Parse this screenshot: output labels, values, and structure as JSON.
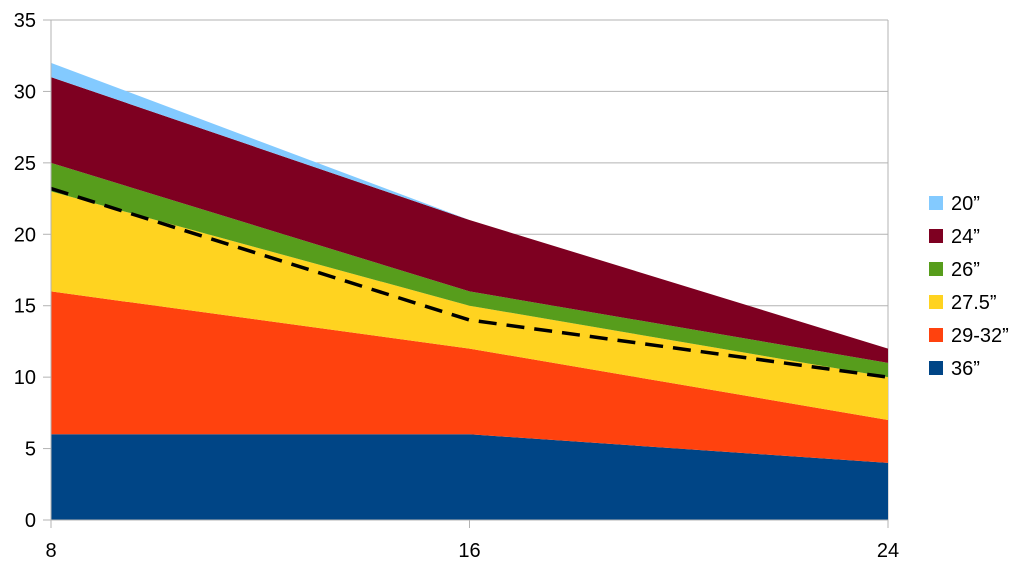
{
  "chart_data": {
    "type": "area",
    "stacked": true,
    "title": "",
    "xlabel": "",
    "ylabel": "",
    "x": [
      8,
      16,
      24
    ],
    "x_ticks": [
      "8",
      "16",
      "24"
    ],
    "ylim": [
      0,
      35
    ],
    "y_ticks": [
      "0",
      "5",
      "10",
      "15",
      "20",
      "25",
      "30",
      "35"
    ],
    "grid": true,
    "legend_position": "right",
    "series": [
      {
        "name": "36”",
        "color": "#004586",
        "values": [
          6,
          6,
          4
        ]
      },
      {
        "name": "29-32”",
        "color": "#ff420e",
        "values": [
          10,
          6,
          3
        ]
      },
      {
        "name": "27.5”",
        "color": "#ffd320",
        "values": [
          7,
          3,
          3
        ]
      },
      {
        "name": "26”",
        "color": "#579d1c",
        "values": [
          2,
          1,
          1
        ]
      },
      {
        "name": "24”",
        "color": "#7e0021",
        "values": [
          6,
          5,
          1
        ]
      },
      {
        "name": "20”",
        "color": "#83caff",
        "values": [
          1,
          0,
          0
        ]
      }
    ],
    "overlay_line": {
      "style": "dashed",
      "color": "#000000",
      "values": [
        23.2,
        14,
        10
      ]
    }
  }
}
